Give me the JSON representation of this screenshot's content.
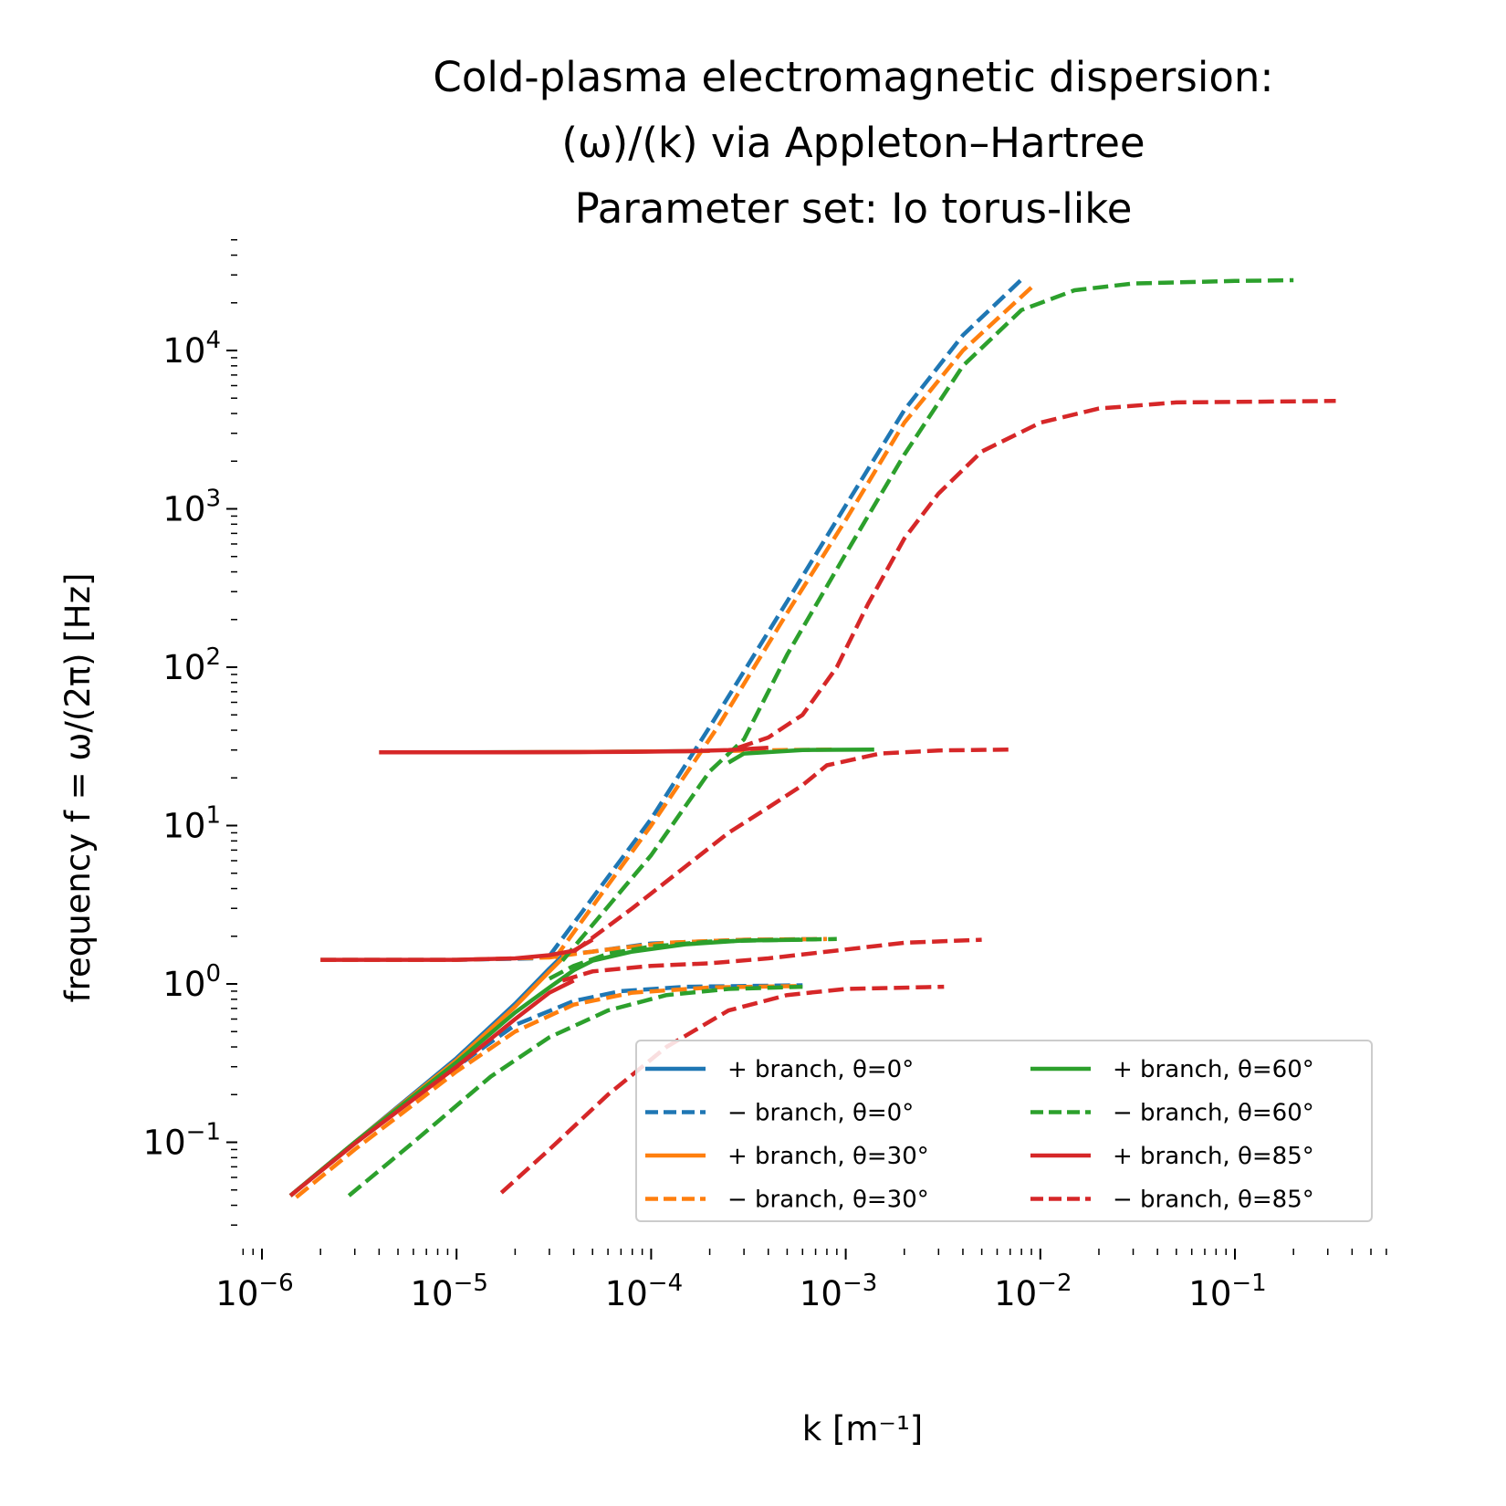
{
  "chart_data": {
    "type": "line",
    "title": [
      "Cold-plasma electromagnetic dispersion:",
      "(ω)/(k) via Appleton–Hartree",
      "Parameter set: Io torus-like"
    ],
    "xlabel": "k [m⁻¹]",
    "ylabel": "frequency f = ω/(2π) [Hz]",
    "xscale": "log",
    "yscale": "log",
    "xlim": [
      8e-07,
      0.6
    ],
    "ylim": [
      0.03,
      50000
    ],
    "grid": false,
    "legend_position": "lower-right",
    "legend_columns": 2,
    "x_tick_labels": [
      {
        "value": 1e-06,
        "base": "10",
        "exp": "−6"
      },
      {
        "value": 1e-05,
        "base": "10",
        "exp": "−5"
      },
      {
        "value": 0.0001,
        "base": "10",
        "exp": "−4"
      },
      {
        "value": 0.001,
        "base": "10",
        "exp": "−3"
      },
      {
        "value": 0.01,
        "base": "10",
        "exp": "−2"
      },
      {
        "value": 0.1,
        "base": "10",
        "exp": "−1"
      }
    ],
    "y_tick_labels": [
      {
        "value": 0.1,
        "base": "10",
        "exp": "−1"
      },
      {
        "value": 1,
        "base": "10",
        "exp": "0"
      },
      {
        "value": 10,
        "base": "10",
        "exp": "1"
      },
      {
        "value": 100,
        "base": "10",
        "exp": "2"
      },
      {
        "value": 1000,
        "base": "10",
        "exp": "3"
      },
      {
        "value": 10000,
        "base": "10",
        "exp": "4"
      }
    ],
    "series": [
      {
        "name": "+ branch, θ=0°",
        "color": "#1f77b4",
        "dash": "solid",
        "segments": [
          [
            [
              1.4e-06,
              0.046
            ],
            [
              3e-06,
              0.1
            ],
            [
              1e-05,
              0.34
            ],
            [
              2e-05,
              0.75
            ],
            [
              3e-05,
              1.25
            ],
            [
              3.5e-05,
              1.5
            ]
          ],
          [
            [
              4e-06,
              29
            ],
            [
              1e-05,
              29
            ],
            [
              5e-05,
              29.2
            ],
            [
              0.00015,
              29.5
            ],
            [
              0.0002,
              29.6
            ]
          ]
        ]
      },
      {
        "name": "− branch, θ=0°",
        "color": "#1f77b4",
        "dash": "dashed",
        "segments": [
          [
            [
              1.4e-06,
              0.046
            ],
            [
              3e-06,
              0.1
            ],
            [
              1e-05,
              0.3
            ],
            [
              2e-05,
              0.55
            ],
            [
              4e-05,
              0.78
            ],
            [
              7e-05,
              0.9
            ],
            [
              0.00015,
              0.96
            ],
            [
              0.0006,
              0.98
            ]
          ],
          [
            [
              2e-06,
              1.42
            ],
            [
              1e-05,
              1.42
            ],
            [
              2.5e-05,
              1.45
            ],
            [
              5e-05,
              1.6
            ],
            [
              0.0001,
              1.8
            ],
            [
              0.0003,
              1.9
            ],
            [
              0.0008,
              1.92
            ]
          ],
          [
            [
              3e-05,
              1.5
            ],
            [
              0.0001,
              11
            ],
            [
              0.0002,
              42
            ],
            [
              0.0005,
              260
            ],
            [
              0.001,
              1050
            ],
            [
              0.002,
              4200
            ],
            [
              0.004,
              12500
            ],
            [
              0.008,
              28000
            ]
          ]
        ]
      },
      {
        "name": "+ branch, θ=30°",
        "color": "#ff7f0e",
        "dash": "solid",
        "segments": [
          [
            [
              1.4e-06,
              0.046
            ],
            [
              3e-06,
              0.1
            ],
            [
              1e-05,
              0.33
            ],
            [
              2e-05,
              0.72
            ],
            [
              3e-05,
              1.2
            ],
            [
              3.5e-05,
              1.45
            ]
          ],
          [
            [
              4e-06,
              29
            ],
            [
              1e-05,
              29
            ],
            [
              5e-05,
              29.2
            ],
            [
              0.00015,
              29.5
            ],
            [
              0.0002,
              29.6
            ]
          ]
        ]
      },
      {
        "name": "− branch, θ=30°",
        "color": "#ff7f0e",
        "dash": "dashed",
        "segments": [
          [
            [
              1.5e-06,
              0.045
            ],
            [
              3e-06,
              0.09
            ],
            [
              1e-05,
              0.28
            ],
            [
              2e-05,
              0.5
            ],
            [
              4e-05,
              0.74
            ],
            [
              8e-05,
              0.88
            ],
            [
              0.0002,
              0.95
            ],
            [
              0.0006,
              0.97
            ]
          ],
          [
            [
              2e-06,
              1.42
            ],
            [
              1e-05,
              1.42
            ],
            [
              3e-05,
              1.47
            ],
            [
              6e-05,
              1.65
            ],
            [
              0.00012,
              1.82
            ],
            [
              0.0003,
              1.9
            ],
            [
              0.0008,
              1.92
            ]
          ],
          [
            [
              3.2e-05,
              1.45
            ],
            [
              0.0001,
              10
            ],
            [
              0.00022,
              42
            ],
            [
              0.0005,
              220
            ],
            [
              0.001,
              850
            ],
            [
              0.002,
              3500
            ],
            [
              0.004,
              10000
            ],
            [
              0.009,
              25000
            ]
          ],
          [
            [
              0.00025,
              29.6
            ],
            [
              0.0005,
              30
            ],
            [
              0.0009,
              30.2
            ]
          ]
        ]
      },
      {
        "name": "+ branch, θ=60°",
        "color": "#2ca02c",
        "dash": "solid",
        "segments": [
          [
            [
              1.4e-06,
              0.046
            ],
            [
              3e-06,
              0.1
            ],
            [
              1e-05,
              0.32
            ],
            [
              2e-05,
              0.66
            ],
            [
              3e-05,
              0.95
            ],
            [
              4e-05,
              1.22
            ],
            [
              5e-05,
              1.4
            ],
            [
              8e-05,
              1.6
            ],
            [
              0.00015,
              1.78
            ],
            [
              0.0003,
              1.88
            ],
            [
              0.0006,
              1.9
            ]
          ],
          [
            [
              0.00025,
              25
            ],
            [
              0.0003,
              28.5
            ],
            [
              0.0006,
              30
            ],
            [
              0.0014,
              30.2
            ]
          ]
        ]
      },
      {
        "name": "− branch, θ=60°",
        "color": "#2ca02c",
        "dash": "dashed",
        "segments": [
          [
            [
              2.8e-06,
              0.046
            ],
            [
              6e-06,
              0.1
            ],
            [
              1.5e-05,
              0.26
            ],
            [
              3e-05,
              0.46
            ],
            [
              6e-05,
              0.68
            ],
            [
              0.00012,
              0.85
            ],
            [
              0.00025,
              0.93
            ],
            [
              0.0006,
              0.96
            ]
          ],
          [
            [
              3e-05,
              1.08
            ],
            [
              4e-05,
              1.3
            ],
            [
              6e-05,
              1.55
            ],
            [
              0.0001,
              1.72
            ],
            [
              0.0002,
              1.85
            ],
            [
              0.0005,
              1.9
            ],
            [
              0.0009,
              1.92
            ]
          ],
          [
            [
              3.5e-05,
              1.4
            ],
            [
              0.0001,
              6.5
            ],
            [
              0.0002,
              22
            ],
            [
              0.0003,
              35
            ],
            [
              0.0005,
              120
            ],
            [
              0.001,
              520
            ],
            [
              0.002,
              2200
            ],
            [
              0.004,
              8000
            ],
            [
              0.008,
              18000
            ],
            [
              0.015,
              24000
            ],
            [
              0.03,
              26500
            ],
            [
              0.1,
              27500
            ],
            [
              0.2,
              27800
            ]
          ]
        ]
      },
      {
        "name": "+ branch, θ=85°",
        "color": "#d62728",
        "dash": "solid",
        "segments": [
          [
            [
              1.4e-06,
              0.046
            ],
            [
              3e-06,
              0.098
            ],
            [
              1e-05,
              0.3
            ],
            [
              2e-05,
              0.6
            ],
            [
              3e-05,
              0.88
            ],
            [
              4e-05,
              1.05
            ]
          ],
          [
            [
              2e-06,
              1.42
            ],
            [
              1e-05,
              1.42
            ],
            [
              2e-05,
              1.45
            ],
            [
              3e-05,
              1.52
            ],
            [
              4e-05,
              1.62
            ],
            [
              5e-05,
              1.9
            ]
          ],
          [
            [
              4e-06,
              29
            ],
            [
              2e-05,
              29
            ],
            [
              8e-05,
              29.2
            ],
            [
              0.00015,
              29.5
            ],
            [
              0.00025,
              30
            ],
            [
              0.0004,
              31
            ]
          ]
        ]
      },
      {
        "name": "− branch, θ=85°",
        "color": "#d62728",
        "dash": "dashed",
        "segments": [
          [
            [
              1.7e-05,
              0.048
            ],
            [
              3e-05,
              0.09
            ],
            [
              6e-05,
              0.2
            ],
            [
              0.00012,
              0.4
            ],
            [
              0.00025,
              0.68
            ],
            [
              0.0005,
              0.85
            ],
            [
              0.001,
              0.93
            ],
            [
              0.0032,
              0.96
            ]
          ],
          [
            [
              3.5e-05,
              1.05
            ],
            [
              5e-05,
              1.2
            ],
            [
              0.0001,
              1.3
            ],
            [
              0.0002,
              1.35
            ],
            [
              0.0004,
              1.45
            ],
            [
              0.001,
              1.65
            ],
            [
              0.002,
              1.82
            ],
            [
              0.005,
              1.9
            ]
          ],
          [
            [
              4e-05,
              1.6
            ],
            [
              8e-05,
              3
            ],
            [
              0.00015,
              5.5
            ],
            [
              0.00025,
              9
            ],
            [
              0.0004,
              13
            ],
            [
              0.0006,
              18
            ],
            [
              0.0008,
              24
            ],
            [
              0.0015,
              28.5
            ],
            [
              0.003,
              29.8
            ],
            [
              0.007,
              30.2
            ]
          ],
          [
            [
              0.00028,
              31
            ],
            [
              0.0004,
              36
            ],
            [
              0.0006,
              50
            ],
            [
              0.0009,
              100
            ],
            [
              0.0013,
              250
            ],
            [
              0.002,
              650
            ],
            [
              0.003,
              1250
            ],
            [
              0.005,
              2300
            ],
            [
              0.01,
              3500
            ],
            [
              0.02,
              4300
            ],
            [
              0.05,
              4700
            ],
            [
              0.33,
              4800
            ]
          ]
        ]
      }
    ]
  }
}
